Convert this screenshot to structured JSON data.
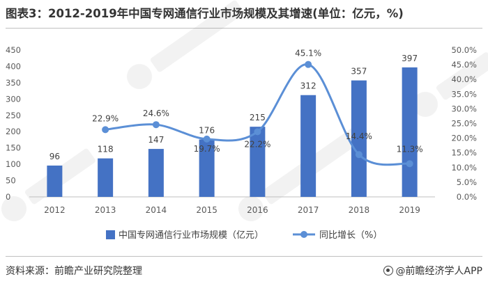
{
  "title": "图表3：2012-2019年中国专网通信行业市场规模及其增速(单位：亿元，%)",
  "source": "资料来源：前瞻产业研究院整理",
  "brand": "@前瞻经济学人APP",
  "colors": {
    "bar": "#4472c4",
    "line": "#5b8fd6",
    "axis_text": "#595959",
    "grid": "#d9d9d9"
  },
  "chart_data": {
    "type": "bar",
    "categories": [
      "2012",
      "2013",
      "2014",
      "2015",
      "2016",
      "2017",
      "2018",
      "2019"
    ],
    "series": [
      {
        "name": "中国专网通信行业市场规模（亿元）",
        "type": "bar",
        "axis": "left",
        "values": [
          96,
          118,
          147,
          176,
          215,
          312,
          357,
          397
        ],
        "labels": [
          "96",
          "118",
          "147",
          "176",
          "215",
          "312",
          "357",
          "397"
        ]
      },
      {
        "name": "同比增长（%）",
        "type": "line",
        "axis": "right",
        "values": [
          null,
          22.9,
          24.6,
          19.7,
          22.2,
          45.1,
          14.4,
          11.3
        ],
        "labels": [
          "",
          "22.9%",
          "24.6%",
          "19.7%",
          "22.2%",
          "45.1%",
          "14.4%",
          "11.3%"
        ]
      }
    ],
    "left_axis": {
      "min": 0,
      "max": 450,
      "ticks": [
        "0",
        "50",
        "100",
        "150",
        "200",
        "250",
        "300",
        "350",
        "400",
        "450"
      ]
    },
    "right_axis": {
      "min": 0,
      "max": 50,
      "ticks": [
        "0.0%",
        "5.0%",
        "10.0%",
        "15.0%",
        "20.0%",
        "25.0%",
        "30.0%",
        "35.0%",
        "40.0%",
        "45.0%",
        "50.0%"
      ]
    },
    "grid": false,
    "legend_position": "bottom"
  }
}
